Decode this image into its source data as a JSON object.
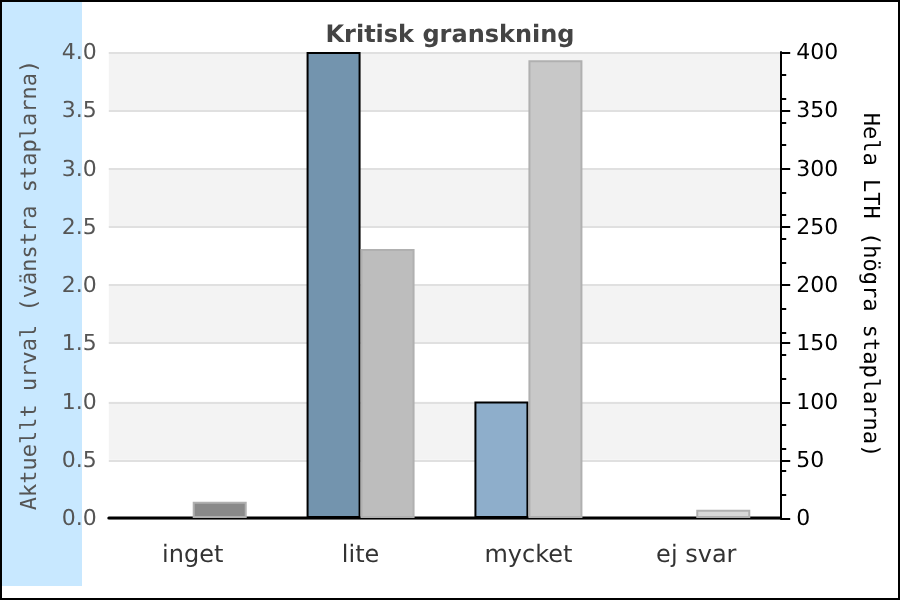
{
  "chart_data": {
    "type": "bar",
    "title": "Kritisk granskning",
    "ylabel": "Aktuellt urval (vänstra staplarna)",
    "y2label": "Hela LTH (högra staplarna)",
    "categories": [
      "inget",
      "lite",
      "mycket",
      "ej svar"
    ],
    "series": [
      {
        "colors": [
          "#7394ae",
          "#7394ae",
          "#8eaecb",
          "#8eaecb"
        ],
        "values": [
          0,
          4,
          1,
          0
        ]
      },
      {
        "axis": "y2",
        "colors": [
          "#8a8a8a",
          "#bdbdbd",
          "#c8c8c8",
          "#d8d8d8"
        ],
        "values": [
          14,
          231,
          393,
          7
        ]
      }
    ],
    "ylim": [
      0,
      4
    ],
    "yticks": [
      {
        "value": 0,
        "label": "0.0"
      },
      {
        "value": 0.5,
        "label": "0.5"
      },
      {
        "value": 1,
        "label": "1.0"
      },
      {
        "value": 1.5,
        "label": "1.5"
      },
      {
        "value": 2,
        "label": "2.0"
      },
      {
        "value": 2.5,
        "label": "2.5"
      },
      {
        "value": 3,
        "label": "3.0"
      },
      {
        "value": 3.5,
        "label": "3.5"
      },
      {
        "value": 4,
        "label": "4.0"
      }
    ],
    "y2lim": [
      0,
      400
    ],
    "y2ticks": [
      0,
      50,
      100,
      150,
      200,
      250,
      300,
      350,
      400
    ],
    "grid": "y"
  }
}
